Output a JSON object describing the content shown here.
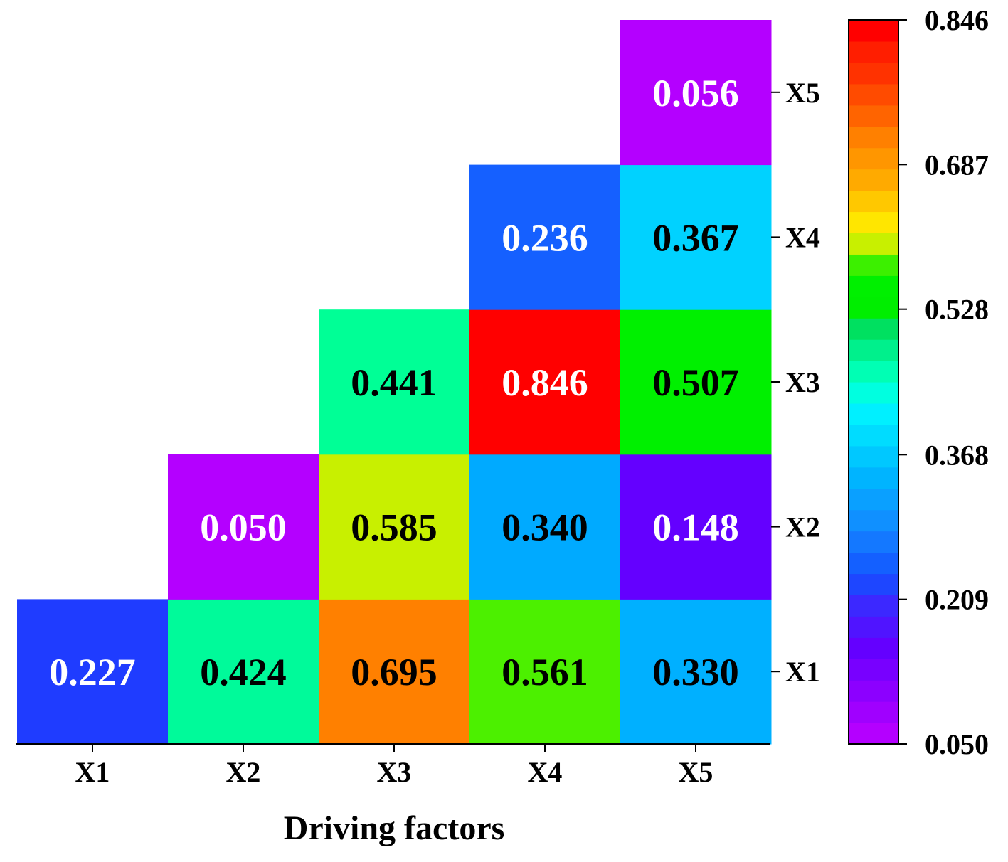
{
  "chart_data": {
    "type": "heatmap",
    "title": "",
    "xlabel": "Driving factors",
    "ylabel": "",
    "x_categories": [
      "X1",
      "X2",
      "X3",
      "X4",
      "X5"
    ],
    "y_categories": [
      "X1",
      "X2",
      "X3",
      "X4",
      "X5"
    ],
    "cells": [
      {
        "x": "X1",
        "y": "X1",
        "value": 0.227,
        "label": "0.227",
        "color": "#1f3cff",
        "text_color": "#ffffff"
      },
      {
        "x": "X2",
        "y": "X1",
        "value": 0.424,
        "label": "0.424",
        "color": "#00fa9a",
        "text_color": "#000000"
      },
      {
        "x": "X3",
        "y": "X1",
        "value": 0.695,
        "label": "0.695",
        "color": "#ff8000",
        "text_color": "#000000"
      },
      {
        "x": "X4",
        "y": "X1",
        "value": 0.561,
        "label": "0.561",
        "color": "#4cf000",
        "text_color": "#000000"
      },
      {
        "x": "X5",
        "y": "X1",
        "value": 0.33,
        "label": "0.330",
        "color": "#00b0ff",
        "text_color": "#000000"
      },
      {
        "x": "X2",
        "y": "X2",
        "value": 0.05,
        "label": "0.050",
        "color": "#b400ff",
        "text_color": "#ffffff"
      },
      {
        "x": "X3",
        "y": "X2",
        "value": 0.585,
        "label": "0.585",
        "color": "#c8f000",
        "text_color": "#000000"
      },
      {
        "x": "X4",
        "y": "X2",
        "value": 0.34,
        "label": "0.340",
        "color": "#00aaff",
        "text_color": "#000000"
      },
      {
        "x": "X5",
        "y": "X2",
        "value": 0.148,
        "label": "0.148",
        "color": "#6400ff",
        "text_color": "#ffffff"
      },
      {
        "x": "X3",
        "y": "X3",
        "value": 0.441,
        "label": "0.441",
        "color": "#00ff96",
        "text_color": "#000000"
      },
      {
        "x": "X4",
        "y": "X3",
        "value": 0.846,
        "label": "0.846",
        "color": "#ff0000",
        "text_color": "#ffffff"
      },
      {
        "x": "X5",
        "y": "X3",
        "value": 0.507,
        "label": "0.507",
        "color": "#00f000",
        "text_color": "#000000"
      },
      {
        "x": "X4",
        "y": "X4",
        "value": 0.236,
        "label": "0.236",
        "color": "#1560ff",
        "text_color": "#ffffff"
      },
      {
        "x": "X5",
        "y": "X4",
        "value": 0.367,
        "label": "0.367",
        "color": "#00d2ff",
        "text_color": "#000000"
      },
      {
        "x": "X5",
        "y": "X5",
        "value": 0.056,
        "label": "0.056",
        "color": "#b400ff",
        "text_color": "#ffffff"
      }
    ],
    "colorbar": {
      "min": 0.05,
      "max": 0.846,
      "ticks": [
        "0.050",
        "0.209",
        "0.368",
        "0.528",
        "0.687",
        "0.846"
      ],
      "colors": [
        "#b400ff",
        "#a000ff",
        "#8c00ff",
        "#7800ff",
        "#6400ff",
        "#5014ff",
        "#3c28ff",
        "#1e46ff",
        "#1460ff",
        "#1478ff",
        "#1090ff",
        "#0aa0ff",
        "#00b4ff",
        "#00c8ff",
        "#00dcff",
        "#00f0ff",
        "#00ffe0",
        "#00ffb4",
        "#00f08c",
        "#00e060",
        "#00ee00",
        "#00f000",
        "#3cf000",
        "#c8f000",
        "#ffe600",
        "#ffc800",
        "#ffaa00",
        "#ff9600",
        "#ff8000",
        "#ff6400",
        "#ff4b00",
        "#ff3200",
        "#ff1e00",
        "#ff0000"
      ]
    }
  }
}
